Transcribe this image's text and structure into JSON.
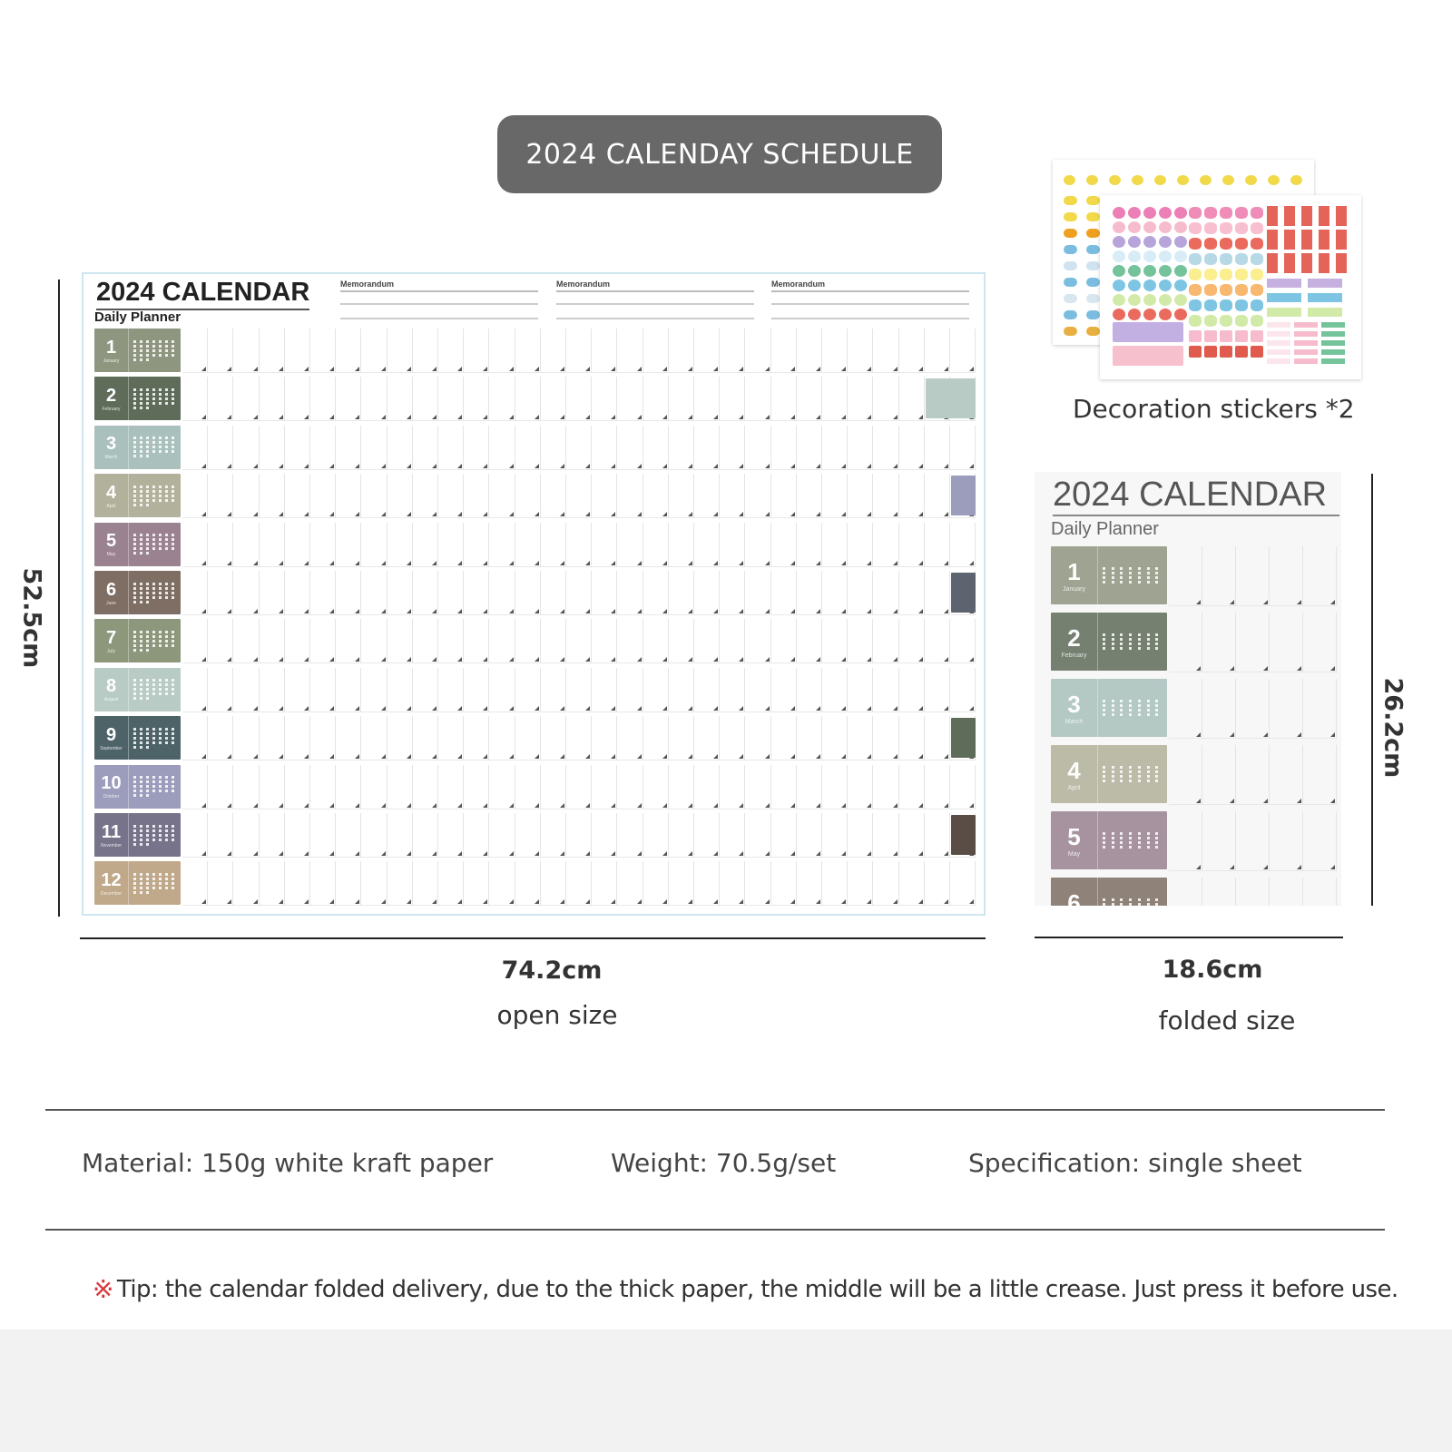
{
  "header": {
    "title": "2024 CALENDAY SCHEDULE",
    "bg": "#686868"
  },
  "calendar": {
    "year_title": "2024 CALENDAR",
    "subtitle": "Daily Planner",
    "memo_labels": [
      "Memorandum",
      "Memorandum",
      "Memorandum"
    ],
    "days_per_row": 31,
    "months": [
      {
        "num": "1",
        "name": "January",
        "color": "#8f9680"
      },
      {
        "num": "2",
        "name": "February",
        "color": "#5f6c5a"
      },
      {
        "num": "3",
        "name": "March",
        "color": "#a9c0bc"
      },
      {
        "num": "4",
        "name": "April",
        "color": "#b2b19b"
      },
      {
        "num": "5",
        "name": "May",
        "color": "#9a8291"
      },
      {
        "num": "6",
        "name": "June",
        "color": "#7e6e63"
      },
      {
        "num": "7",
        "name": "July",
        "color": "#8d977b"
      },
      {
        "num": "8",
        "name": "August",
        "color": "#b8cbc4"
      },
      {
        "num": "9",
        "name": "September",
        "color": "#4e6368"
      },
      {
        "num": "10",
        "name": "October",
        "color": "#9c9cbd"
      },
      {
        "num": "11",
        "name": "November",
        "color": "#77738a"
      },
      {
        "num": "12",
        "name": "December",
        "color": "#c0a98a"
      }
    ],
    "notes": [
      {
        "month": 2,
        "color": "#b8cbc4",
        "wide": true
      },
      {
        "month": 4,
        "color": "#9c9cbd"
      },
      {
        "month": 6,
        "color": "#5d6470"
      },
      {
        "month": 9,
        "color": "#5f6c5a"
      },
      {
        "month": 11,
        "color": "#5a4d45"
      }
    ]
  },
  "stickers": {
    "caption": "Decoration stickers *2"
  },
  "folded": {
    "year_title": "2024 CALENDAR",
    "subtitle": "Daily Planner",
    "visible_months": 6
  },
  "dimensions": {
    "height_open": "52.5cm",
    "width_open": "74.2cm",
    "open_label": "open size",
    "height_folded": "26.2cm",
    "width_folded": "18.6cm",
    "folded_label": "folded size"
  },
  "specs": {
    "material": "Material: 150g white kraft paper",
    "weight": "Weight: 70.5g/set",
    "specification": "Specification: single sheet"
  },
  "tip": {
    "icon": "reference-mark-icon",
    "icon_color": "#d9383a",
    "text": "Tip: the calendar folded delivery, due to the thick paper, the middle will be a little crease. Just press it before use."
  }
}
